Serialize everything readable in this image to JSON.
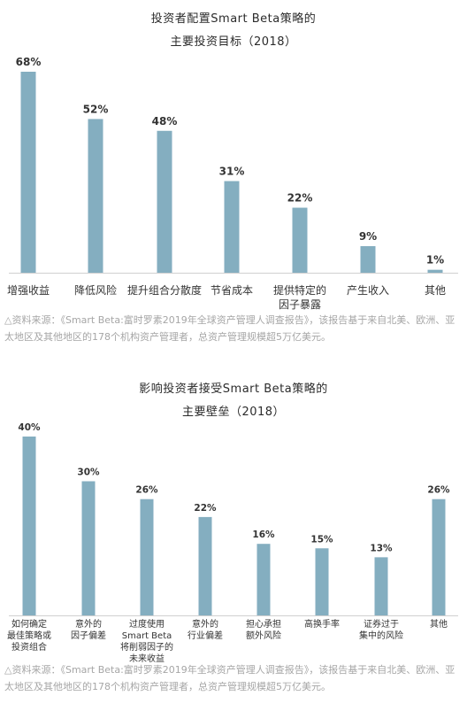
{
  "charts": [
    {
      "title_line1": "投资者配置Smart Beta策略的",
      "title_line2": "主要投资目标（2018）",
      "source_note": "△资料来源：《Smart Beta:富时罗素2019年全球资产管理人调查报告》，该报告基于来自北美、欧洲、亚太地区及其他地区的178个机构资产管理者，总资产管理规模超5万亿美元。"
    },
    {
      "title_line1": "影响投资者接受Smart Beta策略的",
      "title_line2": "主要壁垒（2018）",
      "source_note": "△资料来源：《Smart Beta:富时罗素2019年全球资产管理人调查报告》，该报告基于来自北美、欧洲、亚太地区及其他地区的178个机构资产管理者，总资产管理规模超5万亿美元。"
    }
  ],
  "chart_data": [
    {
      "type": "bar",
      "title": "投资者配置Smart Beta策略的主要投资目标（2018）",
      "categories": [
        [
          "增强收益"
        ],
        [
          "降低风险"
        ],
        [
          "提升组合分散度"
        ],
        [
          "节省成本"
        ],
        [
          "提供特定的",
          "因子暴露"
        ],
        [
          "产生收入"
        ],
        [
          "其他"
        ]
      ],
      "values": [
        68,
        52,
        48,
        31,
        22,
        9,
        1
      ],
      "labels": [
        "68%",
        "52%",
        "48%",
        "31%",
        "22%",
        "9%",
        "1%"
      ],
      "ylim": [
        0,
        68
      ],
      "bar_color": "#84aec0",
      "grid": false
    },
    {
      "type": "bar",
      "title": "影响投资者接受Smart Beta策略的主要壁垒（2018）",
      "categories": [
        [
          "如何确定",
          "最佳策略或",
          "投资组合"
        ],
        [
          "意外的",
          "因子偏差"
        ],
        [
          "过度使用",
          "Smart Beta",
          "将削弱因子的",
          "未来收益"
        ],
        [
          "意外的",
          "行业偏差"
        ],
        [
          "担心承担",
          "额外风险"
        ],
        [
          "高换手率"
        ],
        [
          "证券过于",
          "集中的风险"
        ],
        [
          "其他"
        ]
      ],
      "values": [
        40,
        30,
        26,
        22,
        16,
        15,
        13,
        26
      ],
      "labels": [
        "40%",
        "30%",
        "26%",
        "22%",
        "16%",
        "15%",
        "13%",
        "26%"
      ],
      "ylim": [
        0,
        40
      ],
      "bar_color": "#84aec0",
      "grid": false
    }
  ]
}
